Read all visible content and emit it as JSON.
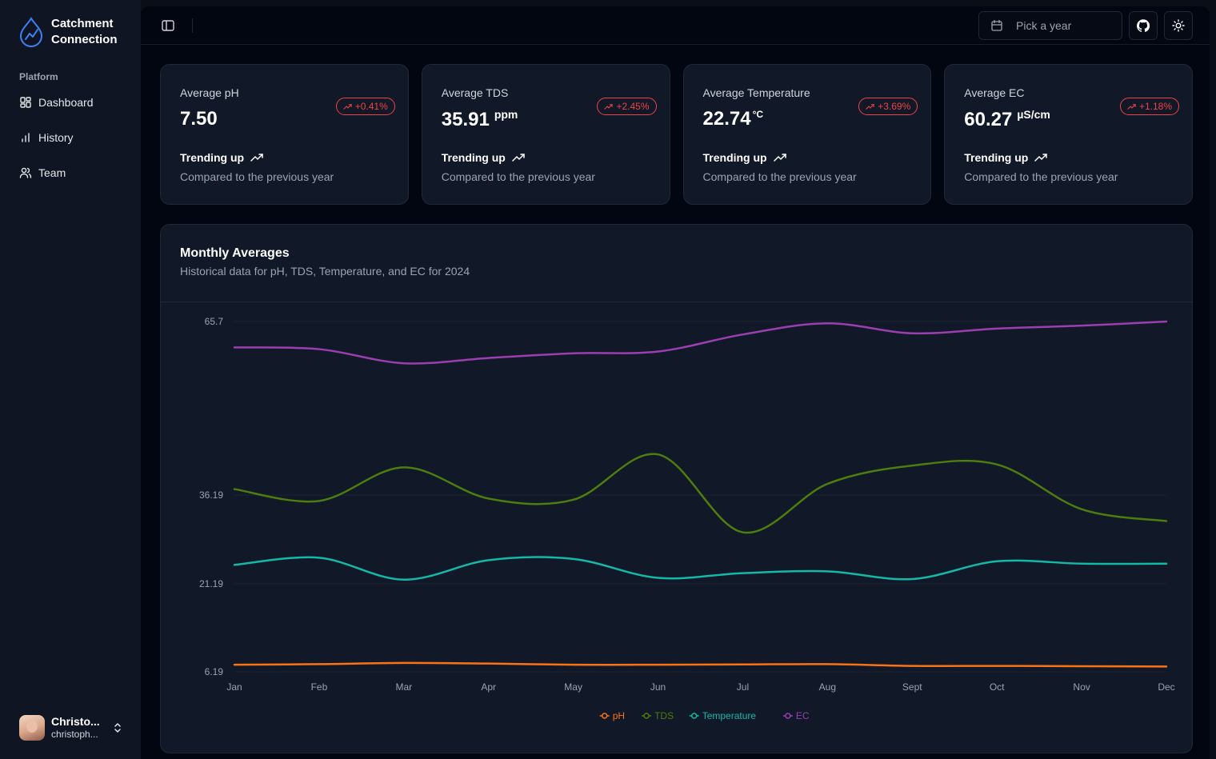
{
  "brand": {
    "name": "Catchment\nConnection"
  },
  "sidebar": {
    "group_label": "Platform",
    "items": [
      {
        "label": "Dashboard",
        "icon": "dashboard-grid-icon"
      },
      {
        "label": "History",
        "icon": "bar-chart-icon"
      },
      {
        "label": "Team",
        "icon": "users-icon"
      }
    ]
  },
  "user": {
    "name": "Christo...",
    "email": "christoph..."
  },
  "topbar": {
    "year_placeholder": "Pick a year"
  },
  "cards": [
    {
      "title": "Average pH",
      "value": "7.50",
      "unit": "",
      "change": "+0.41%",
      "trend": "Trending up",
      "footer": "Compared to the previous year"
    },
    {
      "title": "Average TDS",
      "value": "35.91",
      "unit": "ppm",
      "change": "+2.45%",
      "trend": "Trending up",
      "footer": "Compared to the previous year"
    },
    {
      "title": "Average Temperature",
      "value": "22.74",
      "unit": "°C",
      "change": "+3.69%",
      "trend": "Trending up",
      "footer": "Compared to the previous year"
    },
    {
      "title": "Average EC",
      "value": "60.27",
      "unit": "µS/cm",
      "change": "+1.18%",
      "trend": "Trending up",
      "footer": "Compared to the previous year"
    }
  ],
  "chart_card": {
    "title": "Monthly Averages",
    "description": "Historical data for pH, TDS, Temperature, and EC for 2024"
  },
  "colors": {
    "accent_up": "#ef4444",
    "ph": "#f97316",
    "tds": "#4d7c0f",
    "temperature": "#14b8a6",
    "ec": "#9b3fb0"
  },
  "chart_data": {
    "type": "line",
    "categories": [
      "Jan",
      "Feb",
      "Mar",
      "Apr",
      "May",
      "Jun",
      "Jul",
      "Aug",
      "Sept",
      "Oct",
      "Nov",
      "Dec"
    ],
    "y_ticks": [
      "65.7",
      "36.19",
      "21.19",
      "6.19"
    ],
    "ylim": [
      6.19,
      65.7
    ],
    "series": [
      {
        "name": "pH",
        "color": "#f97316",
        "values": [
          7.4,
          7.5,
          7.7,
          7.6,
          7.4,
          7.4,
          7.45,
          7.5,
          7.2,
          7.2,
          7.15,
          7.1
        ]
      },
      {
        "name": "TDS",
        "color": "#4d7c0f",
        "values": [
          37.2,
          35.2,
          40.9,
          35.6,
          35.4,
          43.1,
          29.9,
          38.1,
          41.2,
          41.4,
          33.8,
          31.8
        ]
      },
      {
        "name": "Temperature",
        "color": "#14b8a6",
        "values": [
          24.4,
          25.6,
          21.9,
          25.2,
          25.4,
          22.2,
          23.0,
          23.3,
          22.0,
          25.0,
          24.6,
          24.6
        ]
      },
      {
        "name": "EC",
        "color": "#9b3fb0",
        "values": [
          61.3,
          61.0,
          58.6,
          59.5,
          60.3,
          60.6,
          63.5,
          65.4,
          63.7,
          64.5,
          65.0,
          65.7
        ]
      }
    ]
  }
}
